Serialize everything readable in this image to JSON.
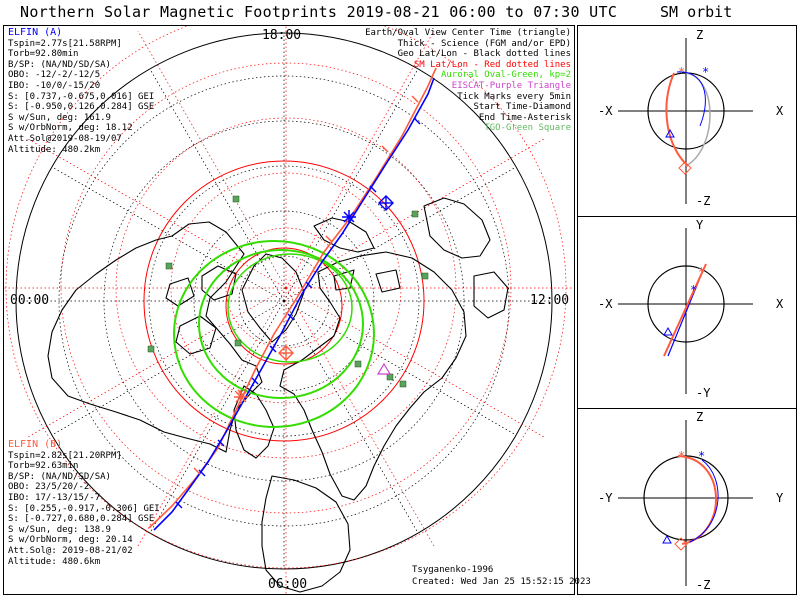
{
  "title": "Northern Solar Magnetic Footprints 2019-08-21 06:00 to 07:30 UTC",
  "side_title": "SM orbit",
  "hour_labels": {
    "top": "18:00",
    "left": "00:00",
    "right": "12:00",
    "bottom": "06:00"
  },
  "elfin_a": {
    "name": "ELFIN (A)",
    "color": "#0000ff",
    "lines": [
      "Tspin=2.77s[21.58RPM]",
      "Torb=92.80min",
      "B/SP: (NA/ND/SD/SA)",
      "OBO: -12/-2/-12/5",
      "IBO: -10/0/-15/20",
      "S: [0.737,-0.675,0.016] GEI",
      "S: [-0.950,0.126,0.284] GSE",
      "S w/Sun, deg: 161.9",
      "S w/OrbNorm, deg: 18.12",
      "Att.Sol@2019-08-19/07",
      "Altitude: 480.2km"
    ]
  },
  "elfin_b": {
    "name": "ELFIN (B)",
    "color": "#ff5a3c",
    "lines": [
      "Tspin=2.82s[21.20RPM]",
      "Torb=92.63min",
      "B/SP: (NA/ND/SD/SA)",
      "OBO: 23/5/20/-2",
      "IBO: 17/-13/15/-7",
      "S: [0.255,-0.917,-0.306] GEI",
      "S: [-0.727,0.680,0.284] GSE",
      "S w/Sun, deg: 138.9",
      "S w/OrbNorm, deg: 20.14",
      "Att.Sol@: 2019-08-21/02",
      "Altitude: 480.6km"
    ]
  },
  "legend": [
    {
      "text": "Earth/Oval View Center Time (triangle)",
      "color": "#000000"
    },
    {
      "text": "Thick - Science (FGM and/or EPD)",
      "color": "#000000"
    },
    {
      "text": "Geo Lat/Lon - Black dotted lines",
      "color": "#000000"
    },
    {
      "text": "SM Lat/Lon - Red dotted lines",
      "color": "#ff0000"
    },
    {
      "text": "Auroral Oval-Green, kp=2",
      "color": "#33dd00"
    },
    {
      "text": "EISCAT-Purple Triangle",
      "color": "#cc44cc"
    },
    {
      "text": "Tick Marks every 5min",
      "color": "#000000"
    },
    {
      "text": "Start Time-Diamond",
      "color": "#000000"
    },
    {
      "text": "End Time-Asterisk",
      "color": "#000000"
    },
    {
      "text": "TGO-Green Square",
      "color": "#66bb66"
    }
  ],
  "credits": {
    "author": "Tsyganenko-1996",
    "created": "Created: Wed Jan 25 15:52:15 2023"
  },
  "orbit_axes": {
    "xz": {
      "top": "Z",
      "bottom": "-Z",
      "left": "-X",
      "right": "X"
    },
    "xy": {
      "top": "Y",
      "bottom": "-Y",
      "left": "-X",
      "right": "X"
    },
    "yz": {
      "top": "Z",
      "bottom": "-Z",
      "left": "-Y",
      "right": "Y"
    }
  },
  "colors": {
    "elfin_a": "#0000ff",
    "elfin_b": "#ff5a3c",
    "auroral_oval": "#33dd00",
    "sm_grid": "#ff0000",
    "tgo": "#5aa35a",
    "eiscat": "#cc44cc"
  }
}
